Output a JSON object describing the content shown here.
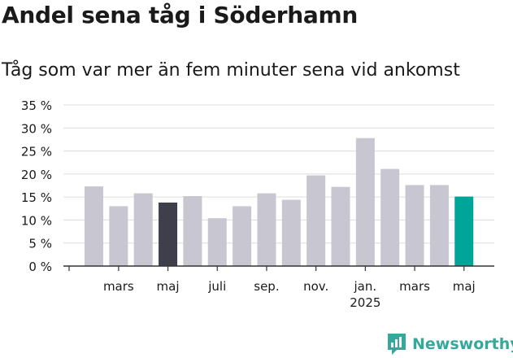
{
  "title": "Andel sena tåg i Söderhamn",
  "subtitle": "Tåg som var mer än fem minuter sena vid ankomst",
  "brand": {
    "name": "Newsworthy",
    "color": "#34a99b",
    "icon": "newsworthy-logo-icon"
  },
  "chart_data": {
    "type": "bar",
    "ylim": [
      0,
      35
    ],
    "yticks": [
      {
        "value": 0,
        "label": "0 %"
      },
      {
        "value": 5,
        "label": "5 %"
      },
      {
        "value": 10,
        "label": "10 %"
      },
      {
        "value": 15,
        "label": "15 %"
      },
      {
        "value": 20,
        "label": "20 %"
      },
      {
        "value": 25,
        "label": "25 %"
      },
      {
        "value": 30,
        "label": "30 %"
      },
      {
        "value": 35,
        "label": "35 %"
      }
    ],
    "grid": true,
    "colors": {
      "default": "#c7c6d1",
      "highlight_dark": "#3f3e4b",
      "highlight_latest": "#00a59a"
    },
    "values": [
      17.3,
      13.0,
      15.8,
      13.8,
      15.2,
      10.4,
      13.0,
      15.8,
      14.4,
      19.7,
      17.2,
      27.8,
      21.1,
      17.6,
      17.6,
      15.1
    ],
    "highlights": {
      "3": "highlight_dark",
      "15": "highlight_latest"
    },
    "xticks": [
      {
        "index": 1,
        "label": "mars"
      },
      {
        "index": 3,
        "label": "maj"
      },
      {
        "index": 5,
        "label": "juli"
      },
      {
        "index": 7,
        "label": "sep."
      },
      {
        "index": 9,
        "label": "nov."
      },
      {
        "index": 11,
        "label": "jan.",
        "sublabel": "2025"
      },
      {
        "index": 13,
        "label": "mars"
      },
      {
        "index": 15,
        "label": "maj"
      }
    ]
  }
}
